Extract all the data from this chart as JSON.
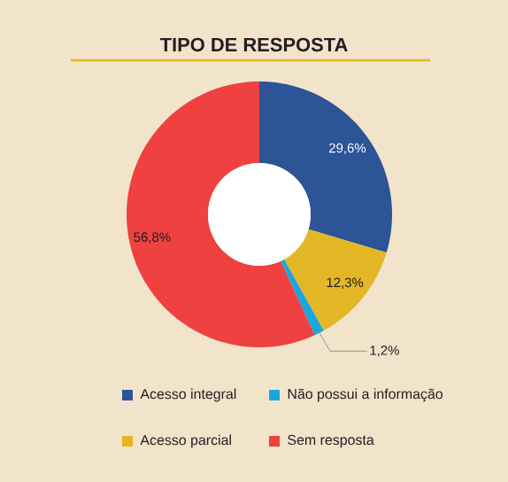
{
  "chart_data": {
    "type": "donut",
    "title": "TIPO DE RESPOSTA",
    "categories": [
      "Acesso integral",
      "Acesso parcial",
      "Não possui a informação",
      "Sem resposta"
    ],
    "values": [
      29.6,
      12.3,
      1.2,
      56.8
    ],
    "colors": [
      "#2c5496",
      "#e3b726",
      "#1aa7e0",
      "#ee4140"
    ],
    "value_labels": [
      "29,6%",
      "12,3%",
      "1,2%",
      "56,8%"
    ],
    "legend": "bottom"
  }
}
